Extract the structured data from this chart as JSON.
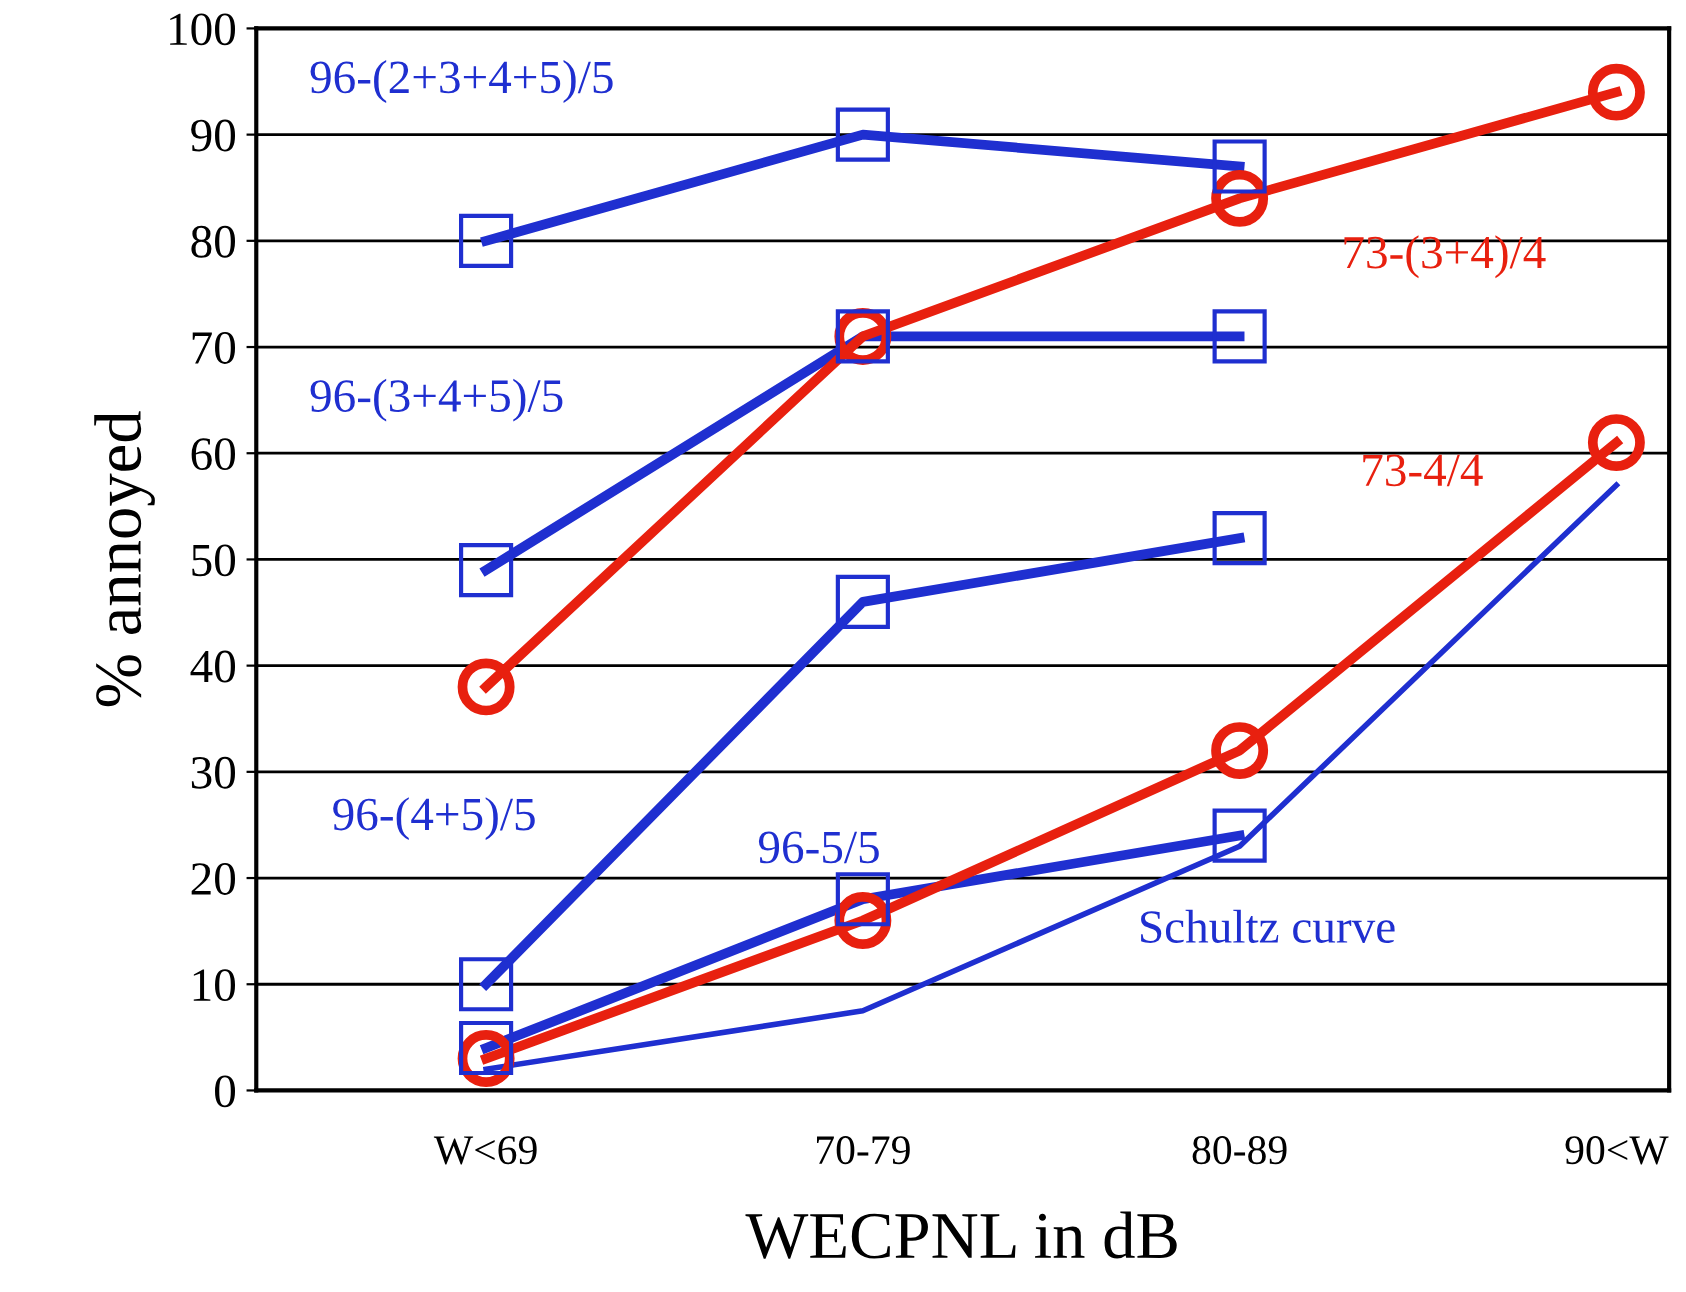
{
  "chart_data": {
    "type": "line",
    "xlabel": "WECPNL in dB",
    "ylabel": "% annoyed",
    "categories": [
      "W<69",
      "70-79",
      "80-89",
      "90<W"
    ],
    "ylim": [
      0,
      100
    ],
    "yticks": [
      0,
      10,
      20,
      30,
      40,
      50,
      60,
      70,
      80,
      90,
      100
    ],
    "grid": "y",
    "legend": false,
    "series": [
      {
        "name": "96-(2+3+4+5)/5",
        "color": "#1f2fd0",
        "marker": "square",
        "values": [
          80,
          90,
          87,
          null
        ]
      },
      {
        "name": "96-(3+4+5)/5",
        "color": "#1f2fd0",
        "marker": "square",
        "values": [
          49,
          71,
          71,
          null
        ]
      },
      {
        "name": "96-(4+5)/5",
        "color": "#1f2fd0",
        "marker": "square",
        "values": [
          10,
          46,
          52,
          null
        ]
      },
      {
        "name": "96-5/5",
        "color": "#1f2fd0",
        "marker": "square",
        "values": [
          4,
          18,
          24,
          null
        ]
      },
      {
        "name": "73-(3+4)/4",
        "color": "#e8200f",
        "marker": "circle",
        "values": [
          38,
          71,
          84,
          94
        ]
      },
      {
        "name": "73-4/4",
        "color": "#e8200f",
        "marker": "circle",
        "values": [
          3,
          16,
          32,
          61
        ]
      },
      {
        "name": "Schultz curve",
        "color": "#1f2fd0",
        "marker": "none",
        "values": [
          2,
          7.5,
          23,
          57
        ]
      }
    ]
  }
}
